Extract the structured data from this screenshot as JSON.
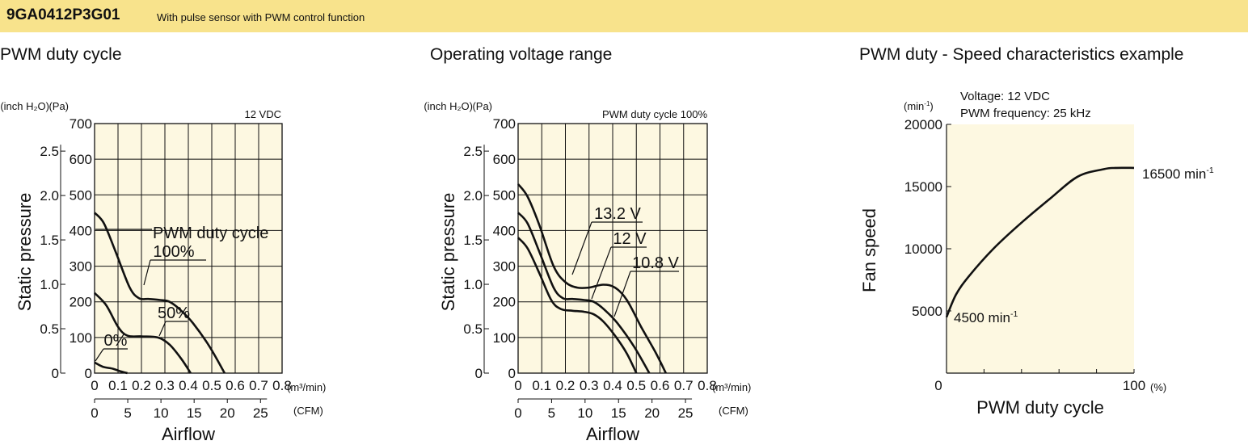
{
  "header": {
    "model": "9GA0412P3G01",
    "description": "With pulse sensor with PWM control function",
    "bg_color": "#f8e38c"
  },
  "plot_bg_color": "#fdf8e1",
  "chart_data": [
    {
      "type": "line",
      "title": "PWM duty cycle",
      "condition": "12 VDC",
      "xlabel": "Airflow",
      "ylabel": "Static pressure",
      "x_unit_primary": "(m³/min)",
      "x_unit_secondary": "(CFM)",
      "y_unit_primary": "(Pa)",
      "y_unit_secondary": "(inch H₂O)",
      "xlim": [
        0,
        0.8
      ],
      "ylim": [
        0,
        700
      ],
      "x_ticks": [
        "0",
        "0.1",
        "0.2",
        "0.3",
        "0.4",
        "0.5",
        "0.6",
        "0.7",
        "0.8"
      ],
      "y_ticks": [
        "0",
        "100",
        "200",
        "300",
        "400",
        "500",
        "600",
        "700"
      ],
      "cfm_ticks": [
        "0",
        "5",
        "10",
        "15",
        "20",
        "25"
      ],
      "inch_ticks": [
        "0",
        "0.5",
        "1.0",
        "1.5",
        "2.0",
        "2.5"
      ],
      "grid": true,
      "series_label_heading": "PWM duty cycle",
      "series": [
        {
          "name": "100%",
          "points": [
            [
              0,
              450
            ],
            [
              0.04,
              420
            ],
            [
              0.09,
              340
            ],
            [
              0.15,
              240
            ],
            [
              0.19,
              210
            ],
            [
              0.23,
              208
            ],
            [
              0.28,
              205
            ],
            [
              0.32,
              200
            ],
            [
              0.37,
              175
            ],
            [
              0.42,
              140
            ],
            [
              0.49,
              75
            ],
            [
              0.555,
              0
            ]
          ]
        },
        {
          "name": "50%",
          "points": [
            [
              0,
              225
            ],
            [
              0.05,
              190
            ],
            [
              0.1,
              130
            ],
            [
              0.14,
              105
            ],
            [
              0.2,
              103
            ],
            [
              0.27,
              100
            ],
            [
              0.32,
              80
            ],
            [
              0.37,
              40
            ],
            [
              0.41,
              0
            ]
          ]
        },
        {
          "name": "0%",
          "points": [
            [
              0,
              30
            ],
            [
              0.035,
              18
            ],
            [
              0.08,
              12
            ],
            [
              0.11,
              5
            ],
            [
              0.14,
              0
            ]
          ]
        }
      ]
    },
    {
      "type": "line",
      "title": "Operating voltage range",
      "condition": "PWM duty cycle 100%",
      "xlabel": "Airflow",
      "ylabel": "Static pressure",
      "x_unit_primary": "(m³/min)",
      "x_unit_secondary": "(CFM)",
      "y_unit_primary": "(Pa)",
      "y_unit_secondary": "(inch H₂O)",
      "xlim": [
        0,
        0.8
      ],
      "ylim": [
        0,
        700
      ],
      "x_ticks": [
        "0",
        "0.1",
        "0.2",
        "0.3",
        "0.4",
        "0.5",
        "0.6",
        "0.7",
        "0.8"
      ],
      "y_ticks": [
        "0",
        "100",
        "200",
        "300",
        "400",
        "500",
        "600",
        "700"
      ],
      "cfm_ticks": [
        "0",
        "5",
        "10",
        "15",
        "20",
        "25"
      ],
      "inch_ticks": [
        "0",
        "0.5",
        "1.0",
        "1.5",
        "2.0",
        "2.5"
      ],
      "grid": true,
      "series": [
        {
          "name": "13.2 V",
          "points": [
            [
              0,
              530
            ],
            [
              0.04,
              495
            ],
            [
              0.09,
              415
            ],
            [
              0.15,
              300
            ],
            [
              0.2,
              255
            ],
            [
              0.25,
              240
            ],
            [
              0.3,
              240
            ],
            [
              0.36,
              248
            ],
            [
              0.41,
              240
            ],
            [
              0.46,
              205
            ],
            [
              0.52,
              130
            ],
            [
              0.58,
              60
            ],
            [
              0.625,
              0
            ]
          ]
        },
        {
          "name": "12 V",
          "points": [
            [
              0,
              450
            ],
            [
              0.04,
              420
            ],
            [
              0.09,
              340
            ],
            [
              0.15,
              240
            ],
            [
              0.19,
              210
            ],
            [
              0.23,
              208
            ],
            [
              0.28,
              205
            ],
            [
              0.32,
              200
            ],
            [
              0.37,
              175
            ],
            [
              0.42,
              140
            ],
            [
              0.49,
              75
            ],
            [
              0.555,
              0
            ]
          ]
        },
        {
          "name": "10.8 V",
          "points": [
            [
              0,
              380
            ],
            [
              0.04,
              350
            ],
            [
              0.09,
              280
            ],
            [
              0.14,
              205
            ],
            [
              0.18,
              180
            ],
            [
              0.23,
              175
            ],
            [
              0.28,
              172
            ],
            [
              0.32,
              165
            ],
            [
              0.36,
              145
            ],
            [
              0.41,
              105
            ],
            [
              0.46,
              55
            ],
            [
              0.5,
              0
            ]
          ]
        }
      ]
    },
    {
      "type": "line",
      "title": "PWM duty - Speed characteristics example",
      "conditions": [
        "Voltage: 12 VDC",
        "PWM frequency: 25 kHz"
      ],
      "xlabel": "PWM duty cycle",
      "ylabel": "Fan speed",
      "x_unit": "(%)",
      "y_unit": "(min",
      "y_unit_sup": "-1",
      "y_unit_end": ")",
      "xlim": [
        0,
        100
      ],
      "ylim": [
        0,
        20000
      ],
      "x_ticks": [
        "0",
        "100"
      ],
      "y_ticks": [
        "5000",
        "10000",
        "15000",
        "20000"
      ],
      "grid": false,
      "series": [
        {
          "name": "",
          "points": [
            [
              0,
              4500
            ],
            [
              5,
              6300
            ],
            [
              12,
              7800
            ],
            [
              25,
              10000
            ],
            [
              40,
              12100
            ],
            [
              55,
              14000
            ],
            [
              70,
              15800
            ],
            [
              84,
              16400
            ],
            [
              90,
              16500
            ],
            [
              100,
              16500
            ]
          ]
        }
      ],
      "annotations": [
        {
          "text": "16500 min",
          "sup": "-1"
        },
        {
          "text": "4500 min",
          "sup": "-1"
        }
      ]
    }
  ]
}
